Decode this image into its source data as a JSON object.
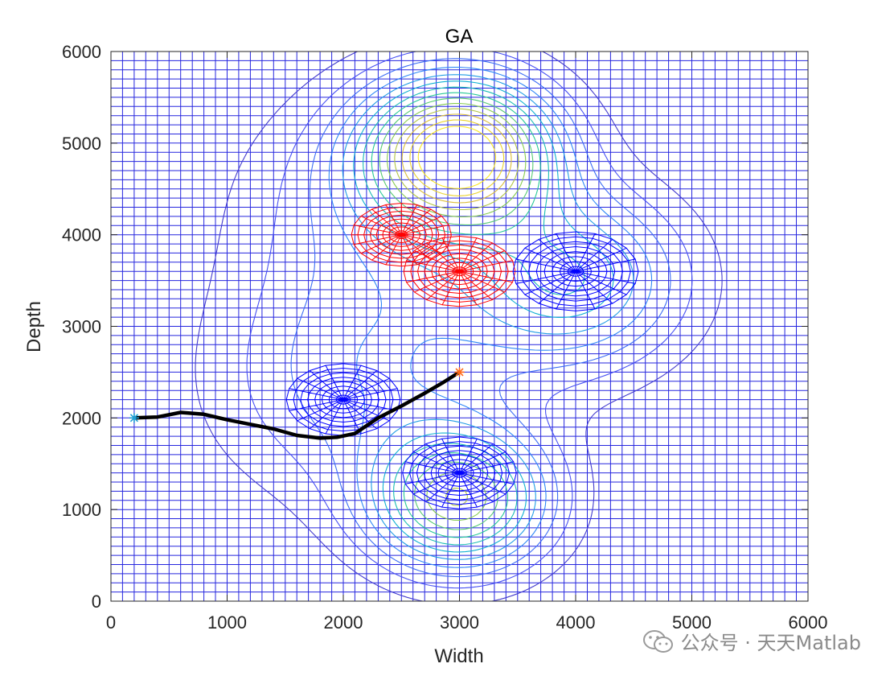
{
  "chart_data": {
    "type": "contour",
    "title": "GA",
    "xlabel": "Width",
    "ylabel": "Depth",
    "xlim": [
      0,
      6000
    ],
    "ylim": [
      0,
      6000
    ],
    "xticks": [
      0,
      1000,
      2000,
      3000,
      4000,
      5000,
      6000
    ],
    "yticks": [
      0,
      1000,
      2000,
      3000,
      4000,
      5000,
      6000
    ],
    "xtick_labels": [
      "0",
      "1000",
      "2000",
      "3000",
      "4000",
      "5000",
      "6000"
    ],
    "ytick_labels": [
      "0",
      "1000",
      "2000",
      "3000",
      "4000",
      "5000",
      "6000"
    ],
    "grid": true,
    "grid_spacing": 100,
    "terrain_peaks": [
      {
        "x": 3000,
        "y": 4900,
        "height": 1.0,
        "sigma": 550
      },
      {
        "x": 3000,
        "y": 1100,
        "height": 0.72,
        "sigma": 520
      },
      {
        "x": 4000,
        "y": 3500,
        "height": 0.45,
        "sigma": 650
      },
      {
        "x": 2200,
        "y": 2400,
        "height": 0.25,
        "sigma": 900
      },
      {
        "x": 2400,
        "y": 4300,
        "height": 0.2,
        "sigma": 900
      }
    ],
    "threats": [
      {
        "x": 2500,
        "y": 4000,
        "radius": 430,
        "color": "#ff0000"
      },
      {
        "x": 3000,
        "y": 3600,
        "radius": 480,
        "color": "#ff0000"
      },
      {
        "x": 4000,
        "y": 3600,
        "radius": 540,
        "color": "#0000ff"
      },
      {
        "x": 2000,
        "y": 2200,
        "radius": 490,
        "color": "#0000ff"
      },
      {
        "x": 3000,
        "y": 1400,
        "radius": 490,
        "color": "#0000ff"
      }
    ],
    "path": {
      "x": [
        200,
        400,
        600,
        800,
        1000,
        1200,
        1400,
        1600,
        1800,
        1950,
        2100,
        2300,
        2500,
        2700,
        2850,
        3000
      ],
      "y": [
        2000,
        2010,
        2060,
        2040,
        1980,
        1930,
        1880,
        1810,
        1780,
        1790,
        1830,
        2000,
        2130,
        2270,
        2380,
        2500
      ],
      "color": "#000000"
    },
    "start": {
      "x": 200,
      "y": 2000,
      "marker": "*",
      "color": "#1f9fd5"
    },
    "goal": {
      "x": 3000,
      "y": 2500,
      "marker": "*",
      "color": "#ff6a1a"
    }
  },
  "watermark": {
    "text": "公众号 · 天天Matlab",
    "icon": "wechat-icon"
  }
}
